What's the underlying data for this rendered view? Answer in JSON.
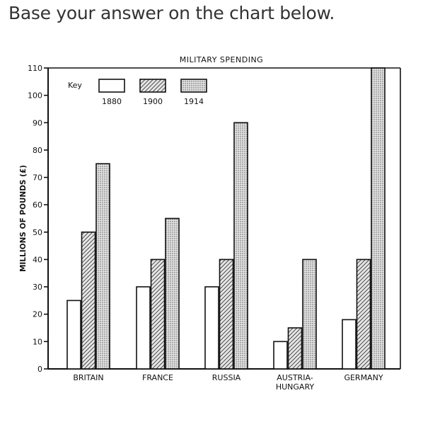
{
  "prompt_text": "Base your answer on the chart below.",
  "colors": {
    "c1880": "#ffffff",
    "c1900": "#bdbdbd",
    "c1914": "#dcdcdc",
    "ink": "#111111"
  },
  "chart_data": {
    "type": "bar",
    "title": "MILITARY SPENDING",
    "ylabel": "MILLIONS OF POUNDS (£)",
    "xlabel": "",
    "ylim": [
      0,
      110
    ],
    "yticks": [
      0,
      10,
      20,
      30,
      40,
      50,
      60,
      70,
      80,
      90,
      100,
      110
    ],
    "ytick_labels": [
      "0",
      "10",
      "20",
      "30",
      "40",
      "50",
      "60",
      "70",
      "80",
      "90",
      "100",
      "110"
    ],
    "categories": [
      "BRITAIN",
      "FRANCE",
      "RUSSIA",
      "AUSTRIA- HUNGARY",
      "GERMANY"
    ],
    "category_lines": [
      [
        "BRITAIN"
      ],
      [
        "FRANCE"
      ],
      [
        "RUSSIA"
      ],
      [
        "AUSTRIA-",
        "HUNGARY"
      ],
      [
        "GERMANY"
      ]
    ],
    "legend_title": "Key",
    "legend_position": "top-left",
    "series": [
      {
        "name": "1880",
        "values": [
          25,
          30,
          30,
          10,
          18
        ],
        "pattern": "blank"
      },
      {
        "name": "1900",
        "values": [
          50,
          40,
          40,
          15,
          40
        ],
        "pattern": "hatched"
      },
      {
        "name": "1914",
        "values": [
          75,
          55,
          90,
          40,
          110
        ],
        "pattern": "dotted"
      }
    ],
    "notes": "Germany 1914 bar runs off the top of the chart."
  }
}
